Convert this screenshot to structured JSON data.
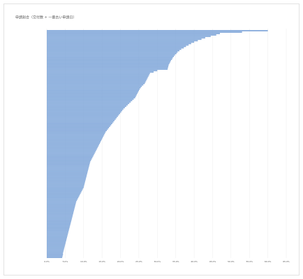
{
  "chart_data": {
    "type": "barh",
    "title": "申請割合（交付数 ÷ 一番古い申請日）",
    "color": "#7fa6d9",
    "grid": true,
    "xlim": [
      0,
      0.65
    ],
    "xticks": [
      {
        "value": 0,
        "label": "0.0%"
      },
      {
        "value": 0.05,
        "label": "5.0%"
      },
      {
        "value": 0.1,
        "label": "10.0%"
      },
      {
        "value": 0.15,
        "label": "15.0%"
      },
      {
        "value": 0.2,
        "label": "20.0%"
      },
      {
        "value": 0.25,
        "label": "25.0%"
      },
      {
        "value": 0.3,
        "label": "30.0%"
      },
      {
        "value": 0.35,
        "label": "35.0%"
      },
      {
        "value": 0.4,
        "label": "40.0%"
      },
      {
        "value": 0.45,
        "label": "45.0%"
      },
      {
        "value": 0.5,
        "label": "50.0%"
      },
      {
        "value": 0.55,
        "label": "55.0%"
      },
      {
        "value": 0.6,
        "label": "60.0%"
      },
      {
        "value": 0.65,
        "label": "65.0%"
      }
    ],
    "categories": [
      null,
      null,
      null,
      null,
      null,
      null,
      null,
      null,
      null,
      null,
      null,
      null,
      null,
      null,
      null,
      null,
      null,
      null,
      null,
      null,
      null,
      null,
      null,
      null,
      null,
      null,
      null,
      null,
      null,
      null,
      null,
      null,
      null,
      null,
      null,
      null,
      null,
      null,
      null,
      null,
      null,
      null,
      null,
      null,
      null,
      null,
      null,
      null,
      null,
      null,
      null,
      null,
      null,
      null,
      null,
      null,
      null,
      null,
      null,
      null,
      null,
      null,
      null,
      null,
      null,
      null,
      null,
      null,
      null,
      null,
      null,
      null,
      null,
      null,
      null,
      null,
      null,
      null,
      null,
      null,
      null,
      null,
      null,
      null,
      null,
      null,
      null,
      null,
      null,
      null,
      null,
      null,
      null,
      null,
      null,
      null,
      null,
      null,
      null,
      null,
      null,
      null,
      null,
      null,
      null,
      null,
      null,
      null,
      null,
      null,
      null,
      null,
      null,
      null,
      null,
      null,
      null,
      null,
      null,
      null,
      null,
      null,
      null,
      null,
      null,
      null,
      null,
      null,
      null,
      null,
      null,
      null,
      null,
      null,
      null,
      null,
      null,
      null,
      null,
      null,
      null,
      null,
      null,
      null,
      null,
      null,
      null,
      null,
      null,
      null,
      null,
      null,
      null,
      null,
      null,
      null,
      null,
      null,
      null,
      null
    ],
    "values": [
      0.6,
      0.53,
      0.47,
      0.46,
      0.445,
      0.43,
      0.42,
      0.41,
      0.4,
      0.392,
      0.385,
      0.378,
      0.372,
      0.365,
      0.36,
      0.355,
      0.352,
      0.348,
      0.345,
      0.342,
      0.34,
      0.337,
      0.335,
      0.333,
      0.331,
      0.33,
      0.329,
      0.328,
      0.3,
      0.29,
      0.28,
      0.278,
      0.276,
      0.274,
      0.272,
      0.27,
      0.268,
      0.266,
      0.262,
      0.258,
      0.255,
      0.252,
      0.25,
      0.248,
      0.246,
      0.244,
      0.242,
      0.24,
      0.236,
      0.232,
      0.228,
      0.224,
      0.22,
      0.216,
      0.212,
      0.208,
      0.205,
      0.202,
      0.199,
      0.196,
      0.193,
      0.19,
      0.187,
      0.184,
      0.181,
      0.178,
      0.175,
      0.172,
      0.169,
      0.166,
      0.163,
      0.16,
      0.158,
      0.156,
      0.154,
      0.152,
      0.15,
      0.148,
      0.146,
      0.144,
      0.142,
      0.14,
      0.138,
      0.136,
      0.134,
      0.132,
      0.13,
      0.128,
      0.126,
      0.124,
      0.122,
      0.12,
      0.118,
      0.117,
      0.116,
      0.115,
      0.114,
      0.113,
      0.112,
      0.111,
      0.11,
      0.109,
      0.108,
      0.107,
      0.106,
      0.105,
      0.104,
      0.103,
      0.102,
      0.101,
      0.1,
      0.098,
      0.096,
      0.094,
      0.092,
      0.09,
      0.088,
      0.086,
      0.084,
      0.082,
      0.08,
      0.079,
      0.078,
      0.077,
      0.076,
      0.075,
      0.074,
      0.073,
      0.072,
      0.071,
      0.07,
      0.069,
      0.068,
      0.067,
      0.066,
      0.065,
      0.064,
      0.063,
      0.062,
      0.061,
      0.06,
      0.059,
      0.058,
      0.057,
      0.056,
      0.055,
      0.054,
      0.053,
      0.052,
      0.051,
      0.05,
      0.049,
      0.048,
      0.047,
      0.046,
      0.045,
      0.044,
      0.044,
      0.043,
      0.042
    ]
  }
}
